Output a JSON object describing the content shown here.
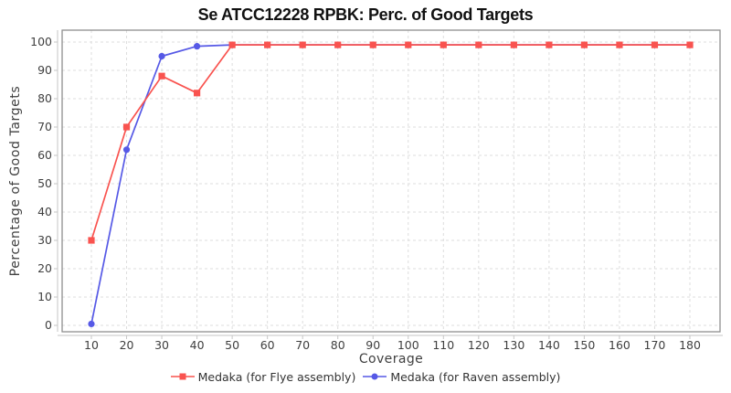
{
  "chart": {
    "title": "Se ATCC12228 RPBK: Perc. of Good Targets",
    "xlabel": "Coverage",
    "ylabel": "Percentage of Good Targets"
  },
  "chart_data": {
    "type": "line",
    "title": "Se ATCC12228 RPBK: Perc. of Good Targets",
    "xlabel": "Coverage",
    "ylabel": "Percentage of Good Targets",
    "x": [
      10,
      20,
      30,
      40,
      50,
      60,
      70,
      80,
      90,
      100,
      110,
      120,
      130,
      140,
      150,
      160,
      170,
      180
    ],
    "xticks": [
      10,
      20,
      30,
      40,
      50,
      60,
      70,
      80,
      90,
      100,
      110,
      120,
      130,
      140,
      150,
      160,
      170,
      180
    ],
    "yticks": [
      0,
      10,
      20,
      30,
      40,
      50,
      60,
      70,
      80,
      90,
      100
    ],
    "ylim": [
      0,
      100
    ],
    "grid": true,
    "legend_position": "bottom",
    "series": [
      {
        "name": "Medaka (for Flye assembly)",
        "color": "#f9534f",
        "marker": "square",
        "values": [
          30,
          70,
          88,
          82,
          99,
          99,
          99,
          99,
          99,
          99,
          99,
          99,
          99,
          99,
          99,
          99,
          99,
          99
        ]
      },
      {
        "name": "Medaka (for Raven assembly)",
        "color": "#5659e6",
        "marker": "circle",
        "values": [
          0.5,
          62,
          95,
          98.5,
          99,
          99,
          99,
          99,
          99,
          99,
          99,
          99,
          99,
          99,
          99,
          99,
          99,
          99
        ]
      }
    ]
  }
}
